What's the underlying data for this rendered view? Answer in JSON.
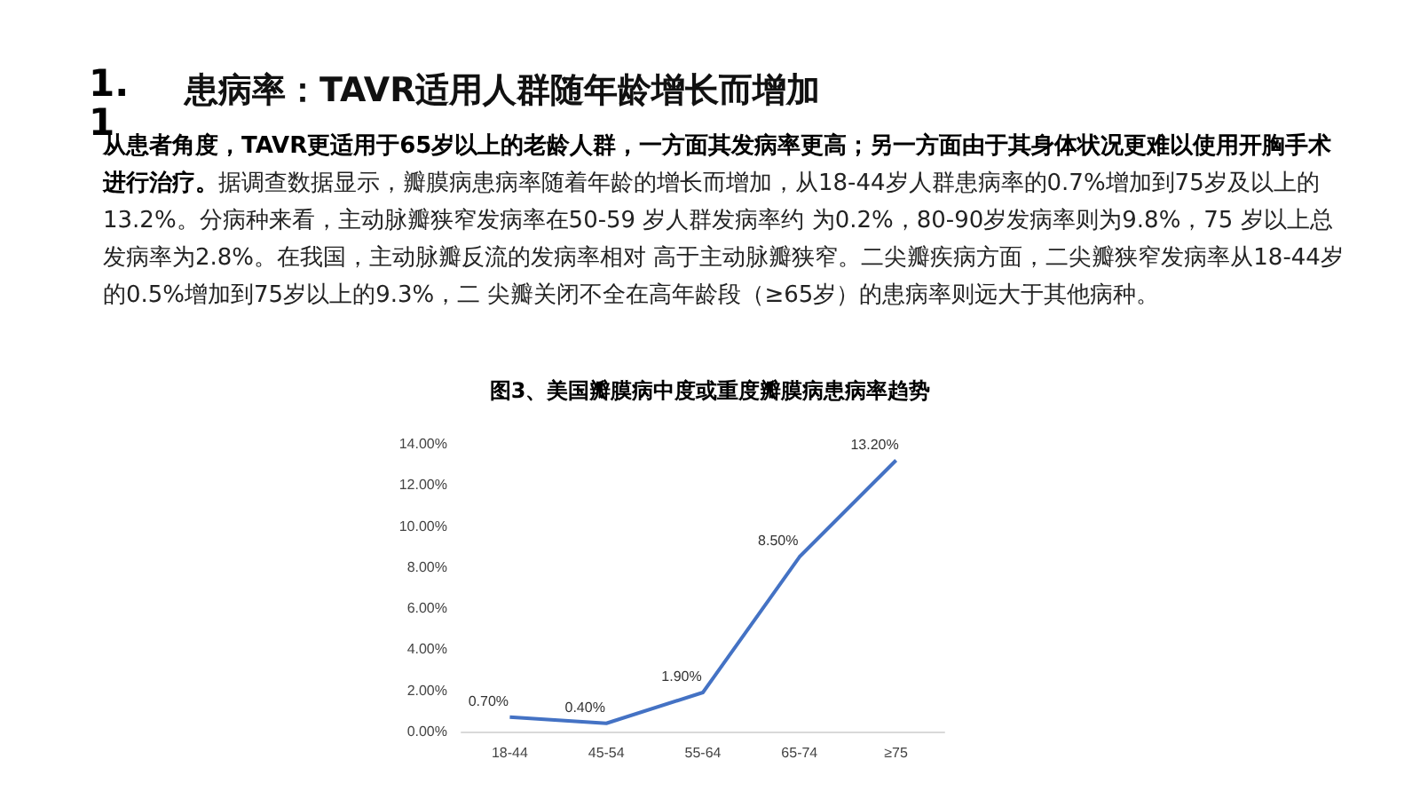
{
  "chart_data": {
    "type": "line",
    "title": "患病率：TAVR适用人群随年龄增长而增加",
    "subtitle": "图3、美国瓣膜病中度或重度瓣膜病患病率趋势",
    "annotations": [
      "1.1",
      "从患者角度，TAVR更适用于65岁以上的老龄人群，一方面其发病率更高；另一方面由于其身体状况更难以使用开胸手术进行治疗。",
      "据调查数据显示，瓣膜病患病率随着年龄的增长而增加，从18-44岁人群患病率的0.7%增加到75岁及以上的13.2%。分病种来看，主动脉瓣狭窄发病率在50-59 岁人群发病率约 为0.2%，80-90岁发病率则为9.8%，75 岁以上总发病率为2.8%。在我国，主动脉瓣反流的发病率相对 高于主动脉瓣狭窄。二尖瓣疾病方面，二尖瓣狭窄发病率从18-44岁的0.5%增加到75岁以上的9.3%，二 尖瓣关闭不全在高年龄段（≥65岁）的患病率则远大于其他病种。"
    ],
    "categories": [
      "18-44",
      "45-54",
      "55-64",
      "65-74",
      "≥75"
    ],
    "values": [
      0.7,
      0.4,
      1.9,
      8.5,
      13.2
    ],
    "value_labels": [
      "0.70%",
      "0.40%",
      "1.90%",
      "8.50%",
      "13.20%"
    ],
    "color": "#4472c4",
    "ylim": [
      0,
      14
    ],
    "yticks": [
      {
        "value": 0,
        "label": "0.00%"
      },
      {
        "value": 2,
        "label": "2.00%"
      },
      {
        "value": 4,
        "label": "4.00%"
      },
      {
        "value": 6,
        "label": "6.00%"
      },
      {
        "value": 8,
        "label": "8.00%"
      },
      {
        "value": 10,
        "label": "10.00%"
      },
      {
        "value": 12,
        "label": "12.00%"
      },
      {
        "value": 14,
        "label": "14.00%"
      }
    ],
    "grid": false,
    "marker": "none",
    "line_style": "solid"
  }
}
